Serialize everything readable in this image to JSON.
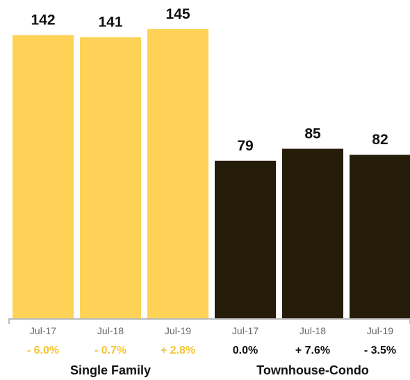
{
  "chart_data": {
    "type": "bar",
    "ylim": [
      0,
      145
    ],
    "groups": [
      {
        "name": "Single Family",
        "color": "#FDD257",
        "change_color": "#F5C432",
        "categories": [
          "Jul-17",
          "Jul-18",
          "Jul-19"
        ],
        "values": [
          142,
          141,
          145
        ],
        "changes": [
          "- 6.0%",
          "- 0.7%",
          "+ 2.8%"
        ]
      },
      {
        "name": "Townhouse-Condo",
        "color": "#261C0A",
        "change_color": "#111111",
        "categories": [
          "Jul-17",
          "Jul-18",
          "Jul-19"
        ],
        "values": [
          79,
          85,
          82
        ],
        "changes": [
          "0.0%",
          "+ 7.6%",
          "- 3.5%"
        ]
      }
    ],
    "axis_color": "#BBBBBB"
  }
}
